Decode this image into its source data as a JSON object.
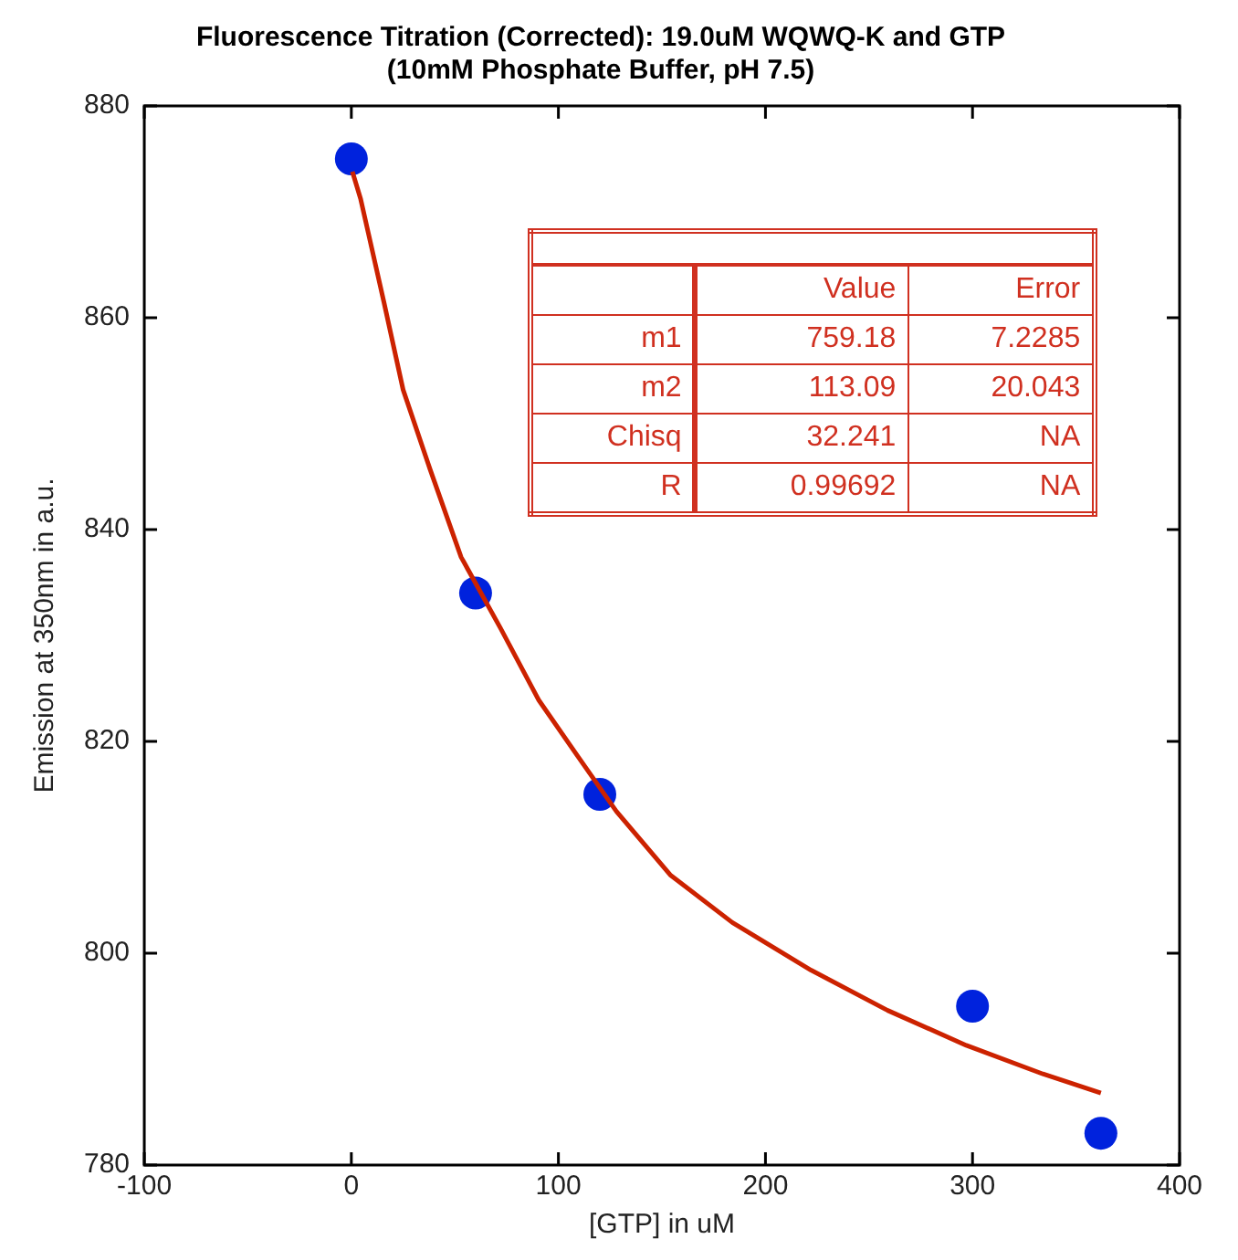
{
  "chart_data": {
    "type": "scatter",
    "title": "Fluorescence Titration (Corrected): 19.0uM WQWQ-K and GTP",
    "subtitle": "(10mM Phosphate Buffer, pH 7.5)",
    "xlabel": "[GTP] in uM",
    "ylabel": "Emission at 350nm in a.u.",
    "series": [
      {
        "type": "line",
        "color": "#cc2200",
        "marker": "none",
        "x": [
          0.5,
          4.5,
          15.7,
          25,
          38,
          53,
          72,
          90.5,
          109,
          128,
          154,
          184,
          222,
          259,
          297,
          334,
          362
        ],
        "values": [
          873.8,
          871.2,
          861.5,
          853.2,
          845.7,
          837.4,
          830.7,
          823.9,
          818.7,
          813.4,
          807.4,
          802.9,
          798.4,
          794.6,
          791.3,
          788.6,
          786.8
        ]
      },
      {
        "color": "#0022dd",
        "marker": "circle",
        "x": [
          0,
          60,
          120,
          300,
          362
        ],
        "values": [
          875,
          834,
          815,
          795,
          783
        ]
      }
    ],
    "annotations": [
      "Value",
      "Error",
      "m1",
      "759.18",
      "7.2285",
      "m2",
      "113.09",
      "20.043",
      "Chisq",
      "32.241",
      "NA",
      "R",
      "0.99692",
      "NA"
    ],
    "xlim": [
      -100,
      400
    ],
    "xticks": [
      -100,
      0,
      100,
      200,
      300,
      400
    ],
    "ylim": [
      780,
      880
    ],
    "yticks": [
      780,
      800,
      820,
      840,
      860,
      880
    ],
    "grid": false,
    "legend": false
  }
}
